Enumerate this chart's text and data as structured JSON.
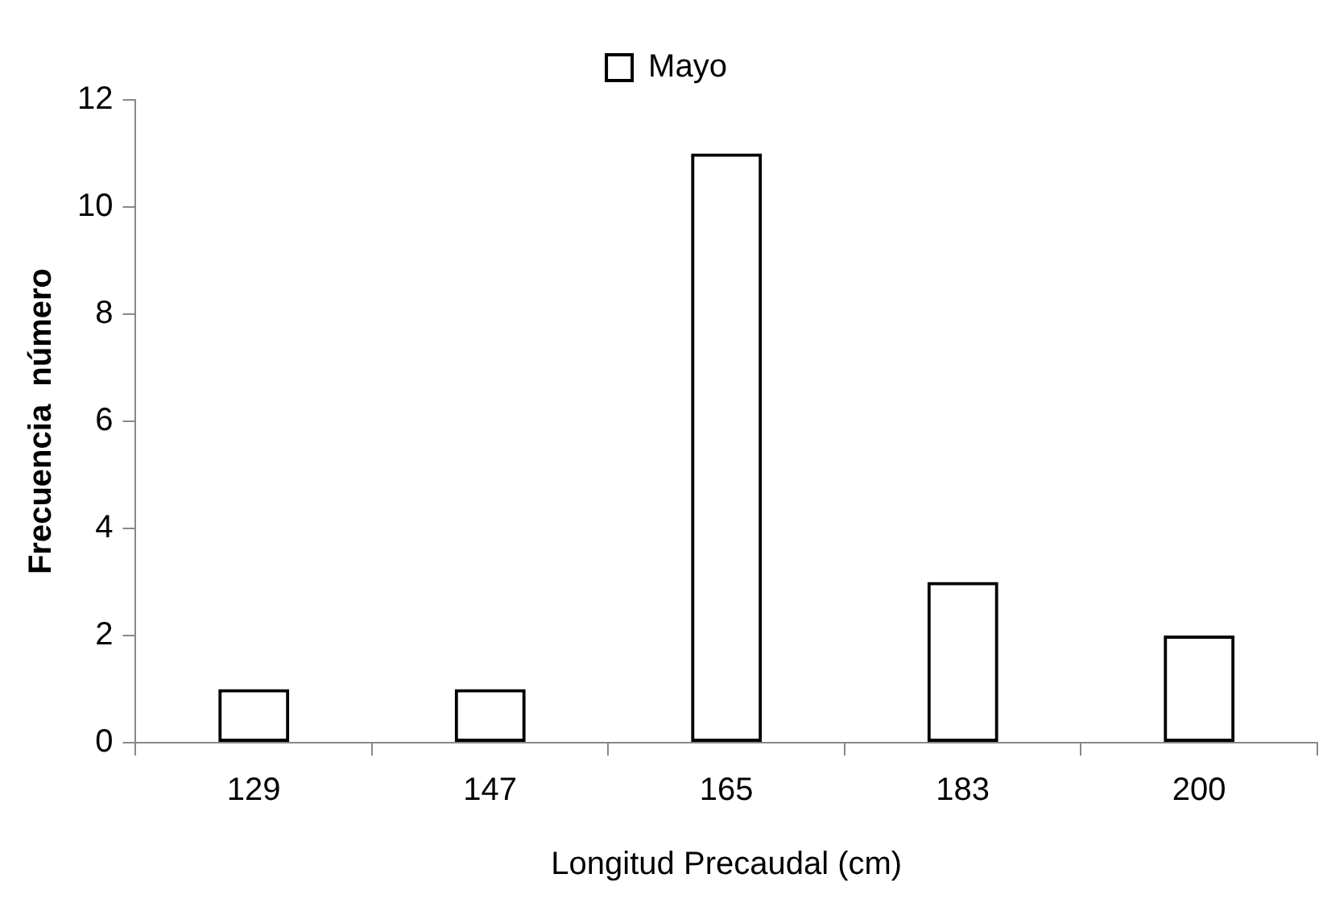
{
  "chart_data": {
    "type": "bar",
    "xlabel": "Longitud Precaudal (cm)",
    "ylabel": "Frecuencia  número",
    "categories": [
      "129",
      "147",
      "165",
      "183",
      "200"
    ],
    "series": [
      {
        "name": "Mayo",
        "color": "#000000",
        "values": [
          1,
          1,
          11,
          3,
          2
        ]
      }
    ],
    "ylim": [
      0,
      12
    ],
    "yticks": [
      0,
      2,
      4,
      6,
      8,
      10,
      12
    ],
    "grid": false,
    "legend": "top"
  }
}
